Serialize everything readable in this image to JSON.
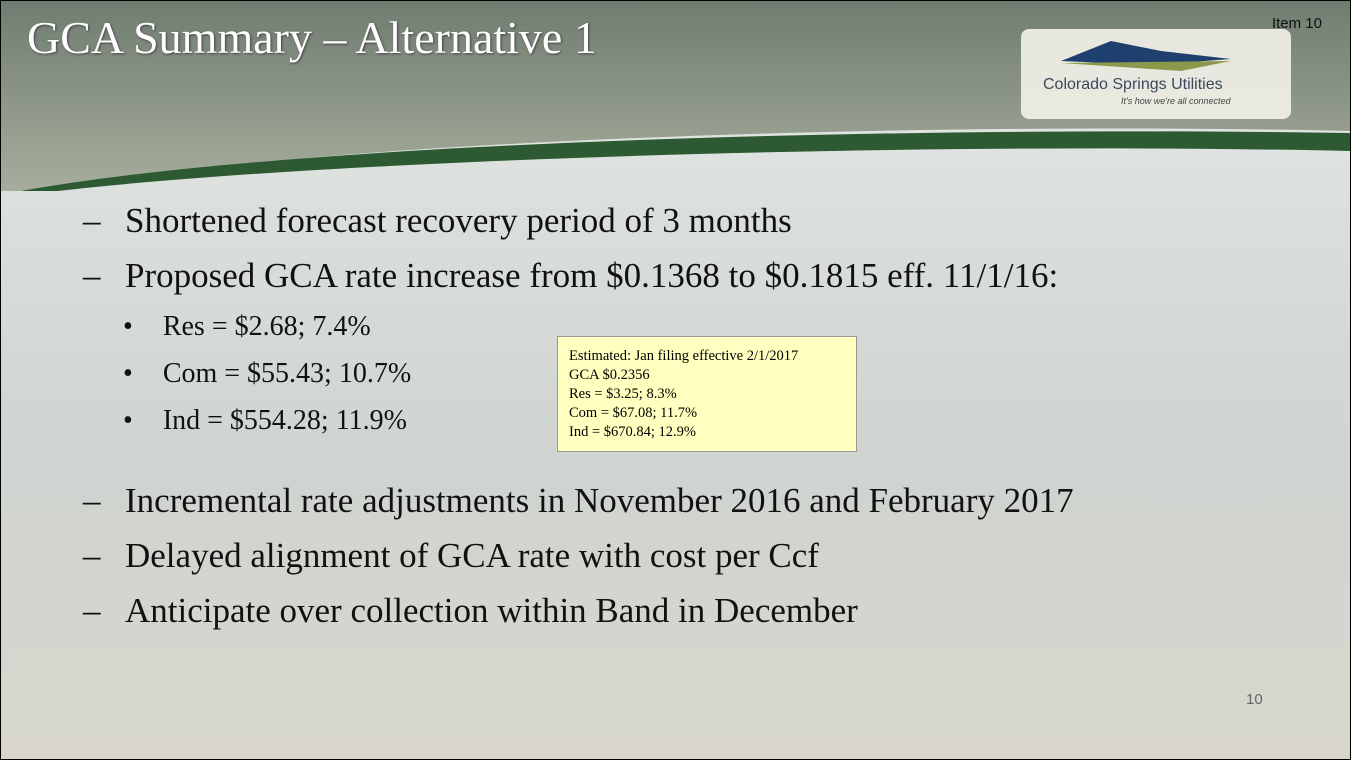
{
  "header": {
    "title": "GCA Summary – Alternative 1",
    "item": "Item 10",
    "logo_name": "Colorado Springs Utilities",
    "logo_tagline": "It's how we're all connected"
  },
  "bullets": [
    {
      "text": "Shortened forecast recovery period of 3 months"
    },
    {
      "text": "Proposed GCA rate increase from $0.1368 to $0.1815 eff. 11/1/16:",
      "sub": [
        "Res = $2.68; 7.4%",
        "Com = $55.43; 10.7%",
        "Ind = $554.28; 11.9%"
      ]
    },
    {
      "text": "Incremental rate adjustments in November 2016 and February 2017"
    },
    {
      "text": "Delayed alignment of GCA rate with cost per Ccf"
    },
    {
      "text": "Anticipate over collection within Band in December"
    }
  ],
  "note": [
    "Estimated: Jan filing effective 2/1/2017",
    "GCA $0.2356",
    "Res = $3.25; 8.3%",
    "Com = $67.08; 11.7%",
    "Ind = $670.84; 12.9%"
  ],
  "page_number": "10"
}
